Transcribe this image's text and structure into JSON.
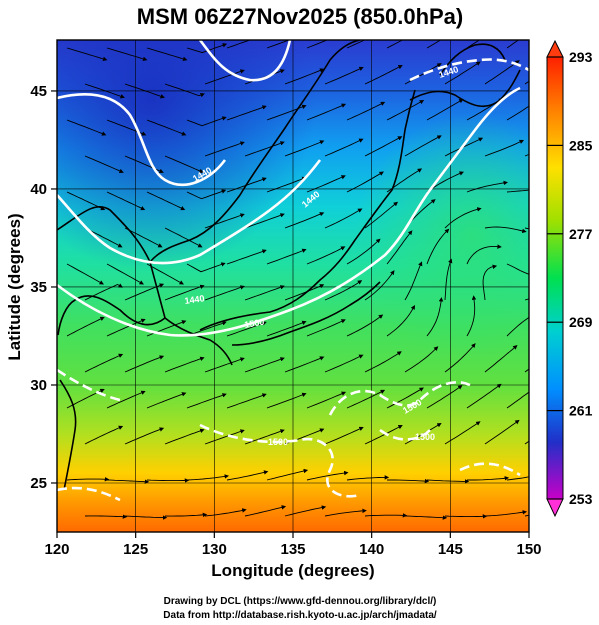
{
  "title": "MSM 06Z27Nov2025 (850.0hPa)",
  "xlabel": "Longitude (degrees)",
  "ylabel": "Latitude  (degrees)",
  "credits": [
    "Drawing by DCL (https://www.gfd-dennou.org/library/dcl/)",
    "Data from http://database.rish.kyoto-u.ac.jp/arch/jmadata/"
  ],
  "x_ticks": [
    "120",
    "125",
    "130",
    "135",
    "140",
    "145",
    "150"
  ],
  "y_ticks": [
    "25",
    "30",
    "35",
    "40",
    "45"
  ],
  "colorbar_ticks": [
    "293",
    "285",
    "277",
    "269",
    "261",
    "253"
  ],
  "contour_labels": [
    "1440",
    "1440",
    "1440",
    "1500",
    "1440",
    "1500",
    "1500",
    "1500"
  ],
  "chart_data": {
    "type": "heatmap",
    "title": "MSM 06Z27Nov2025 (850.0hPa)",
    "xlabel": "Longitude (degrees)",
    "ylabel": "Latitude  (degrees)",
    "xlim": [
      120,
      150
    ],
    "ylim": [
      22.5,
      47.6
    ],
    "x_ticks": [
      120,
      125,
      130,
      135,
      140,
      145,
      150
    ],
    "y_ticks": [
      25,
      30,
      35,
      40,
      45
    ],
    "colorbar": {
      "min": 253,
      "max": 293,
      "ticks": [
        293,
        285,
        277,
        269,
        261,
        253
      ],
      "colors": [
        "#c800c8",
        "#2030c8",
        "#0090ff",
        "#00d0d0",
        "#00e050",
        "#a0e000",
        "#ffe000",
        "#ff8000",
        "#ff2000"
      ]
    },
    "field": "temperature (K) shaded, geopotential height contours (white), wind streamlines (black)"
  }
}
